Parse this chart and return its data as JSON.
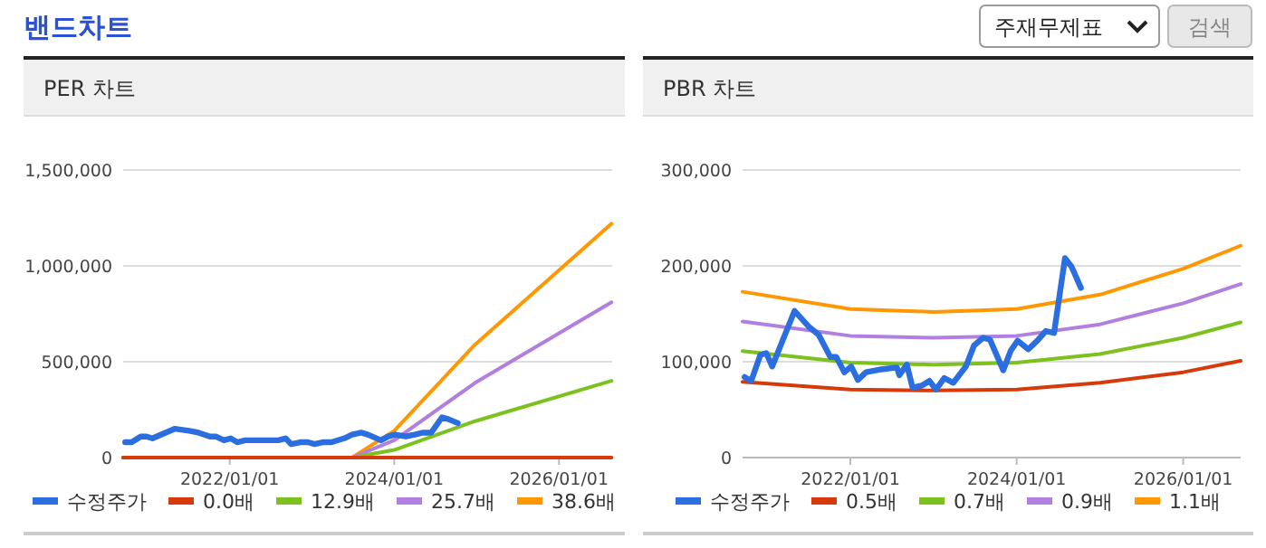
{
  "chart_data": [
    {
      "type": "other",
      "title": "밴드차트",
      "annotations": [
        "주재무제표",
        "검색"
      ]
    },
    {
      "type": "line",
      "title": "PER 차트",
      "xlim": [
        "2020-09-15",
        "2026-08-25"
      ],
      "ylim": [
        0,
        1500000
      ],
      "xticks": [
        {
          "value": "2022-01-01",
          "label": "2022/01/01"
        },
        {
          "value": "2024-01-01",
          "label": "2024/01/01"
        },
        {
          "value": "2026-01-01",
          "label": "2026/01/01"
        }
      ],
      "yticks": [
        {
          "value": 0,
          "label": "0"
        },
        {
          "value": 500000,
          "label": "500,000"
        },
        {
          "value": 1000000,
          "label": "1,000,000"
        },
        {
          "value": 1500000,
          "label": "1,500,000"
        }
      ],
      "grid": "y",
      "legend": "bottom",
      "marker": "none",
      "series": [
        {
          "name": "수정주가",
          "color": "#2a6ee0",
          "x": [
            "2020-09-24",
            "2020-10-23",
            "2020-12-02",
            "2020-12-28",
            "2021-01-23",
            "2021-05-01",
            "2021-07-05",
            "2021-08-15",
            "2021-10-05",
            "2021-10-31",
            "2021-12-06",
            "2022-01-05",
            "2022-02-03",
            "2022-03-11",
            "2022-05-16",
            "2022-07-24",
            "2022-08-04",
            "2022-09-06",
            "2022-10-01",
            "2022-11-10",
            "2022-12-14",
            "2023-01-12",
            "2023-02-17",
            "2023-03-29",
            "2023-05-23",
            "2023-06-28",
            "2023-08-07",
            "2023-09-06",
            "2023-11-03",
            "2023-12-05",
            "2024-01-05",
            "2024-02-21",
            "2024-04-01",
            "2024-05-08",
            "2024-06-13",
            "2024-07-31",
            "2024-08-29",
            "2024-10-09"
          ],
          "values": [
            80000,
            80000,
            110000,
            110000,
            100000,
            150000,
            140000,
            130000,
            110000,
            110000,
            90000,
            100000,
            80000,
            90000,
            90000,
            90000,
            90000,
            100000,
            70000,
            80000,
            80000,
            70000,
            80000,
            80000,
            100000,
            120000,
            130000,
            120000,
            90000,
            110000,
            120000,
            110000,
            120000,
            130000,
            130000,
            210000,
            200000,
            180000
          ]
        },
        {
          "name": "0.0배",
          "color": "#d63a0a",
          "x": [
            "2020-09-15",
            "2026-08-22"
          ],
          "values": [
            0,
            0
          ]
        },
        {
          "name": "12.9배",
          "color": "#7cc11e",
          "x": [
            "2020-09-15",
            "2023-06-28",
            "2024-01-01",
            "2024-12-25",
            "2026-08-22"
          ],
          "values": [
            0,
            0,
            40000,
            190000,
            400000
          ]
        },
        {
          "name": "25.7배",
          "color": "#b07fe0",
          "x": [
            "2020-09-15",
            "2023-06-28",
            "2024-01-01",
            "2024-12-25",
            "2026-08-22"
          ],
          "values": [
            0,
            0,
            90000,
            390000,
            810000
          ]
        },
        {
          "name": "38.6배",
          "color": "#ff9800",
          "x": [
            "2020-09-15",
            "2023-06-28",
            "2024-01-01",
            "2024-12-25",
            "2026-08-22"
          ],
          "values": [
            0,
            0,
            140000,
            590000,
            1220000
          ]
        }
      ]
    },
    {
      "type": "line",
      "title": "PBR 차트",
      "xlim": [
        "2020-09-15",
        "2026-09-10"
      ],
      "ylim": [
        0,
        300000
      ],
      "xticks": [
        {
          "value": "2022-01-01",
          "label": "2022/01/01"
        },
        {
          "value": "2024-01-01",
          "label": "2024/01/01"
        },
        {
          "value": "2026-01-01",
          "label": "2026/01/01"
        }
      ],
      "yticks": [
        {
          "value": 0,
          "label": "0"
        },
        {
          "value": 100000,
          "label": "100,000"
        },
        {
          "value": 200000,
          "label": "200,000"
        },
        {
          "value": 300000,
          "label": "300,000"
        }
      ],
      "grid": "y",
      "legend": "bottom",
      "marker": "none",
      "series": [
        {
          "name": "수정주가",
          "color": "#2a6ee0",
          "x": [
            "2020-09-24",
            "2020-10-23",
            "2020-12-02",
            "2020-12-28",
            "2021-01-23",
            "2021-05-01",
            "2021-07-05",
            "2021-08-15",
            "2021-10-05",
            "2021-10-31",
            "2021-12-06",
            "2022-01-05",
            "2022-02-03",
            "2022-03-11",
            "2022-05-16",
            "2022-07-24",
            "2022-08-04",
            "2022-09-06",
            "2022-10-01",
            "2022-11-10",
            "2022-12-14",
            "2023-01-12",
            "2023-02-17",
            "2023-03-29",
            "2023-05-23",
            "2023-06-28",
            "2023-08-07",
            "2023-09-06",
            "2023-11-03",
            "2023-12-05",
            "2024-01-05",
            "2024-02-21",
            "2024-04-01",
            "2024-05-08",
            "2024-06-13",
            "2024-07-31",
            "2024-08-29",
            "2024-10-09"
          ],
          "values": [
            84000,
            80000,
            107000,
            109000,
            95000,
            153000,
            136000,
            128000,
            105000,
            105000,
            89000,
            95000,
            81000,
            89000,
            92000,
            94000,
            86000,
            97000,
            73000,
            75000,
            80000,
            71000,
            83000,
            78000,
            95000,
            117000,
            125000,
            123000,
            91000,
            111000,
            122000,
            113000,
            122000,
            132000,
            130000,
            208000,
            199000,
            177000
          ]
        },
        {
          "name": "0.5배",
          "color": "#d63a0a",
          "x": [
            "2020-09-15",
            "2022-01-01",
            "2023-01-01",
            "2024-01-01",
            "2025-01-01",
            "2026-01-01",
            "2026-09-10"
          ],
          "values": [
            79000,
            71000,
            70000,
            71000,
            78000,
            89000,
            101000
          ]
        },
        {
          "name": "0.7배",
          "color": "#7cc11e",
          "x": [
            "2020-09-15",
            "2022-01-01",
            "2023-01-01",
            "2024-01-01",
            "2025-01-01",
            "2026-01-01",
            "2026-09-10"
          ],
          "values": [
            111000,
            99000,
            97000,
            99000,
            108000,
            125000,
            141000
          ]
        },
        {
          "name": "0.9배",
          "color": "#b07fe0",
          "x": [
            "2020-09-15",
            "2022-01-01",
            "2023-01-01",
            "2024-01-01",
            "2025-01-01",
            "2026-01-01",
            "2026-09-10"
          ],
          "values": [
            142000,
            127000,
            125000,
            127000,
            139000,
            161000,
            181000
          ]
        },
        {
          "name": "1.1배",
          "color": "#ff9800",
          "x": [
            "2020-09-15",
            "2022-01-01",
            "2023-01-01",
            "2024-01-01",
            "2025-01-01",
            "2026-01-01",
            "2026-09-10"
          ],
          "values": [
            173000,
            155000,
            152000,
            155000,
            170000,
            197000,
            221000
          ]
        }
      ]
    }
  ]
}
